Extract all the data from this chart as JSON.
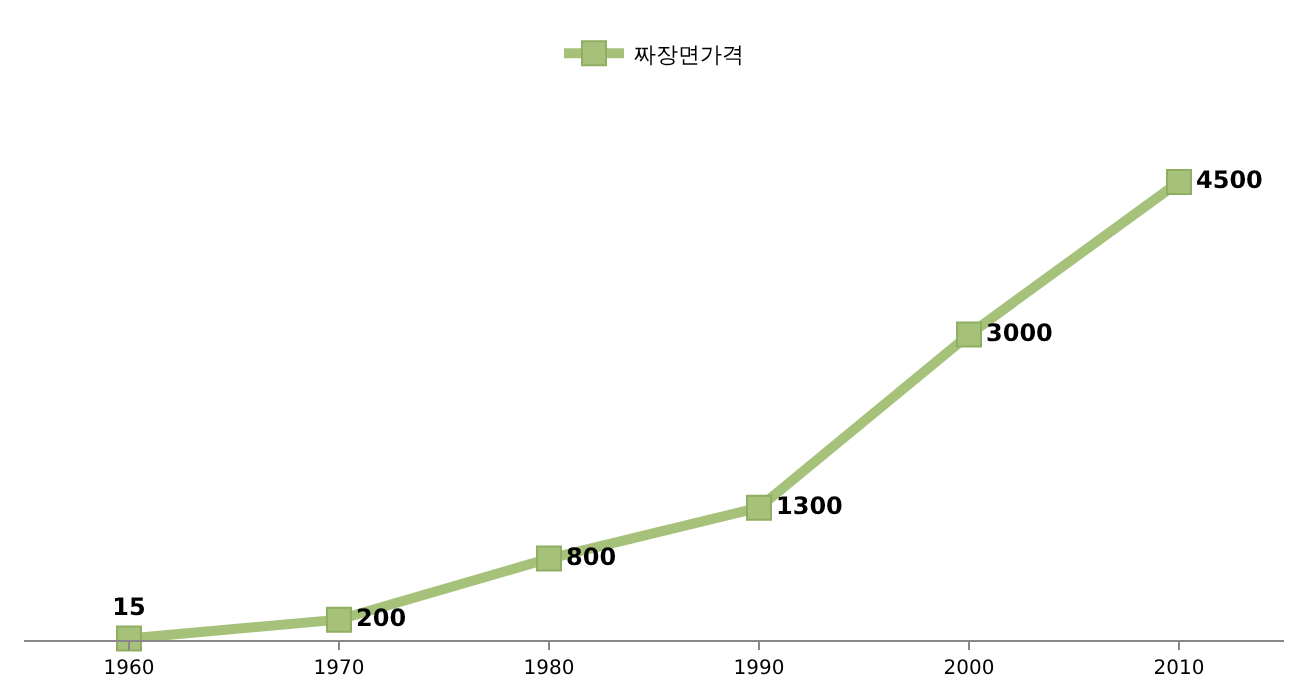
{
  "chart_data": {
    "type": "line",
    "categories": [
      "1960",
      "1970",
      "1980",
      "1990",
      "2000",
      "2010"
    ],
    "series": [
      {
        "name": "짜장면가격",
        "color": "#a6c27a",
        "values": [
          15,
          200,
          800,
          1300,
          3000,
          4500
        ]
      }
    ],
    "data_labels": true,
    "legend": "top",
    "marker": "square",
    "line_style": "solid",
    "grid": false
  }
}
